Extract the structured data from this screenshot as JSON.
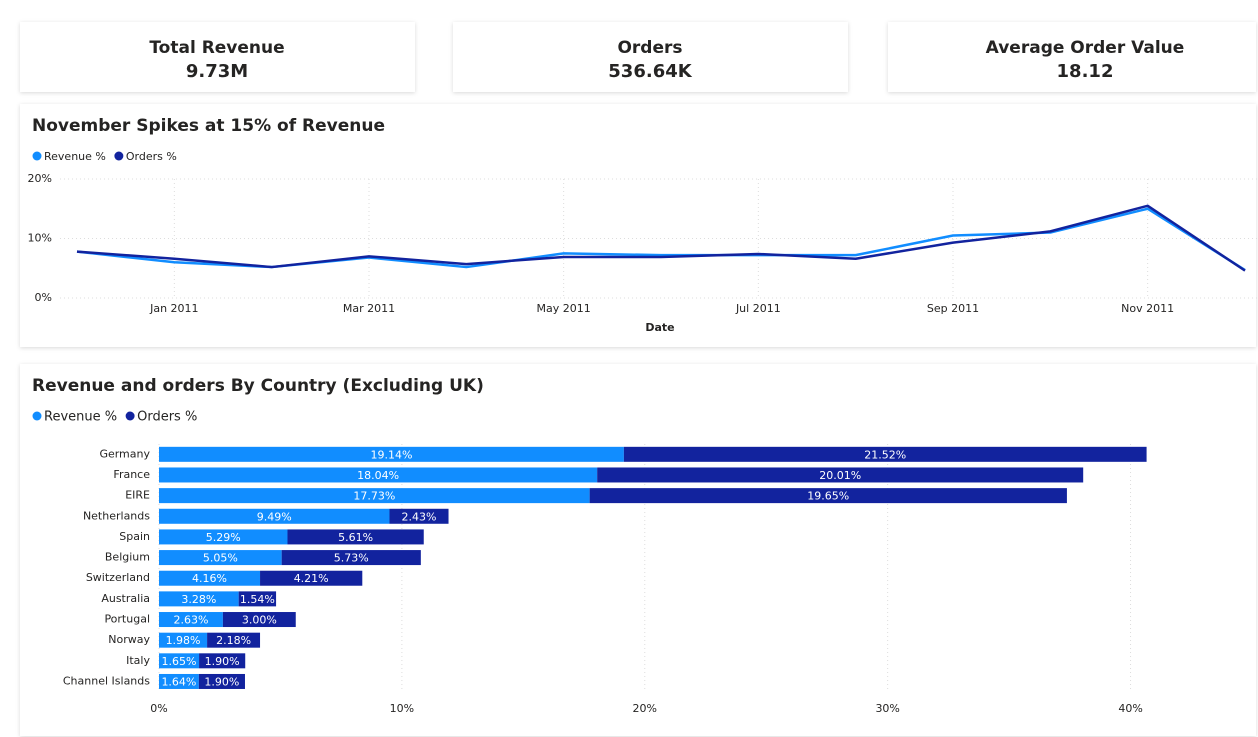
{
  "cards": [
    {
      "label": "Total Revenue",
      "value": "9.73M"
    },
    {
      "label": "Orders",
      "value": "536.64K"
    },
    {
      "label": "Average Order Value",
      "value": "18.12"
    }
  ],
  "chart_data": [
    {
      "type": "line",
      "title": "November Spikes at 15% of Revenue",
      "xlabel": "Date",
      "x": [
        "2010-12",
        "2011-01",
        "2011-02",
        "2011-03",
        "2011-04",
        "2011-05",
        "2011-06",
        "2011-07",
        "2011-08",
        "2011-09",
        "2011-10",
        "2011-11",
        "2011-12"
      ],
      "xticks": [
        {
          "value": "2011-01",
          "label": "Jan 2011"
        },
        {
          "value": "2011-03",
          "label": "Mar 2011"
        },
        {
          "value": "2011-05",
          "label": "May 2011"
        },
        {
          "value": "2011-07",
          "label": "Jul 2011"
        },
        {
          "value": "2011-09",
          "label": "Sep 2011"
        },
        {
          "value": "2011-11",
          "label": "Nov 2011"
        }
      ],
      "ylim": [
        0,
        20
      ],
      "yticks": [
        {
          "value": 0,
          "label": "0%"
        },
        {
          "value": 10,
          "label": "10%"
        },
        {
          "value": 20,
          "label": "20%"
        }
      ],
      "grid": true,
      "legend": "top-left",
      "series": [
        {
          "name": "Revenue %",
          "color": "#118DFF",
          "values": [
            7.8,
            6.0,
            5.2,
            6.8,
            5.2,
            7.5,
            7.2,
            7.2,
            7.2,
            10.5,
            11.0,
            15.0,
            4.7
          ]
        },
        {
          "name": "Orders %",
          "color": "#12239E",
          "values": [
            7.8,
            6.6,
            5.2,
            7.0,
            5.7,
            6.9,
            6.9,
            7.4,
            6.6,
            9.3,
            11.2,
            15.5,
            4.6
          ]
        }
      ]
    },
    {
      "type": "bar",
      "orientation": "horizontal",
      "stacked": true,
      "title": "Revenue and orders By Country (Excluding UK)",
      "categories": [
        "Germany",
        "France",
        "EIRE",
        "Netherlands",
        "Spain",
        "Belgium",
        "Switzerland",
        "Australia",
        "Portugal",
        "Norway",
        "Italy",
        "Channel Islands"
      ],
      "xlim": [
        0,
        45
      ],
      "xticks": [
        {
          "value": 0,
          "label": "0%"
        },
        {
          "value": 10,
          "label": "10%"
        },
        {
          "value": 20,
          "label": "20%"
        },
        {
          "value": 30,
          "label": "30%"
        },
        {
          "value": 40,
          "label": "40%"
        }
      ],
      "grid": true,
      "legend": "top-left",
      "series": [
        {
          "name": "Revenue %",
          "color": "#118DFF",
          "values": [
            19.14,
            18.04,
            17.73,
            9.49,
            5.29,
            5.05,
            4.16,
            3.28,
            2.63,
            1.98,
            1.65,
            1.64
          ],
          "value_labels": [
            "19.14%",
            "18.04%",
            "17.73%",
            "9.49%",
            "5.29%",
            "5.05%",
            "4.16%",
            "3.28%",
            "2.63%",
            "1.98%",
            "1.65%",
            "1.64%"
          ]
        },
        {
          "name": "Orders %",
          "color": "#12239E",
          "values": [
            21.52,
            20.01,
            19.65,
            2.43,
            5.61,
            5.73,
            4.21,
            1.54,
            3.0,
            2.18,
            1.9,
            1.9
          ],
          "value_labels": [
            "21.52%",
            "20.01%",
            "19.65%",
            "2.43%",
            "5.61%",
            "5.73%",
            "4.21%",
            "1.54%",
            "3.00%",
            "2.18%",
            "1.90%",
            "1.90%"
          ]
        }
      ]
    }
  ]
}
